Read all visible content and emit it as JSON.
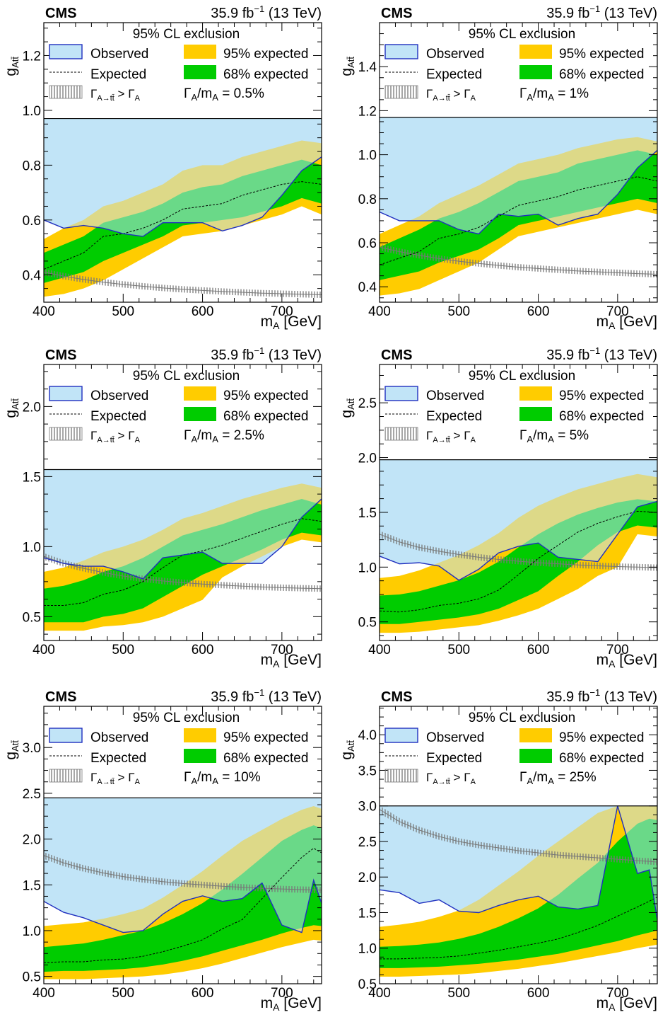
{
  "figure": {
    "experiment": "CMS",
    "lumi": "35.9 fb",
    "lumi_exp": "−1",
    "energy": "(13 TeV)",
    "legend_title": "95% CL exclusion",
    "legend_observed": "Observed",
    "legend_expected": "Expected",
    "legend_95": "95% expected",
    "legend_68": "68% expected",
    "legend_width_text": "> Γ",
    "xlabel": "m",
    "xlabel_sub": "A",
    "xlabel_unit": "[GeV]",
    "ylabel": "g",
    "ylabel_sub": "Att̄",
    "colors": {
      "observed_fill": "#c1e4f7",
      "observed_line": "#1f2fbf",
      "band95": "#ffcc00",
      "band68": "#00cc00",
      "overlap95": "#b8c88a",
      "overlap68": "#3cc87e",
      "width_hatch": "#777777"
    }
  },
  "chart_data": [
    {
      "type": "line",
      "width_label": "Γ",
      "width_sub": "A",
      "width_rest": "/m",
      "width_value": "= 0.5%",
      "xlim": [
        400,
        750
      ],
      "ylim": [
        0.3,
        1.32
      ],
      "yticks": [
        0.4,
        0.6,
        0.8,
        1.0,
        1.2
      ],
      "ytick_labels": [
        "0.4",
        "0.6",
        "0.8",
        "1.0",
        "1.2"
      ],
      "xticks": [
        400,
        500,
        600,
        700
      ],
      "xtick_labels": [
        "400",
        "500",
        "600",
        "700"
      ],
      "legend_frame_y": 0.97,
      "x": [
        400,
        425,
        450,
        475,
        500,
        525,
        550,
        575,
        600,
        625,
        650,
        675,
        700,
        725,
        750
      ],
      "expected": [
        0.42,
        0.45,
        0.48,
        0.54,
        0.55,
        0.57,
        0.6,
        0.64,
        0.65,
        0.66,
        0.69,
        0.71,
        0.73,
        0.74,
        0.73
      ],
      "band68_low": [
        0.37,
        0.39,
        0.41,
        0.45,
        0.48,
        0.51,
        0.54,
        0.58,
        0.59,
        0.6,
        0.61,
        0.63,
        0.65,
        0.68,
        0.66
      ],
      "band68_high": [
        0.48,
        0.51,
        0.54,
        0.59,
        0.61,
        0.63,
        0.66,
        0.7,
        0.72,
        0.73,
        0.76,
        0.78,
        0.8,
        0.82,
        0.8
      ],
      "band95_low": [
        0.32,
        0.33,
        0.35,
        0.38,
        0.42,
        0.46,
        0.5,
        0.54,
        0.55,
        0.56,
        0.58,
        0.6,
        0.62,
        0.65,
        0.62
      ],
      "band95_high": [
        0.53,
        0.57,
        0.6,
        0.65,
        0.67,
        0.7,
        0.73,
        0.78,
        0.8,
        0.8,
        0.83,
        0.85,
        0.87,
        0.89,
        0.88
      ],
      "observed": [
        0.6,
        0.57,
        0.58,
        0.57,
        0.55,
        0.54,
        0.59,
        0.59,
        0.59,
        0.56,
        0.58,
        0.61,
        0.69,
        0.78,
        0.83
      ],
      "width_limit": [
        0.41,
        0.395,
        0.383,
        0.373,
        0.365,
        0.358,
        0.352,
        0.347,
        0.343,
        0.339,
        0.336,
        0.333,
        0.331,
        0.329,
        0.327
      ]
    },
    {
      "type": "line",
      "width_label": "Γ",
      "width_sub": "A",
      "width_rest": "/m",
      "width_value": "= 1%",
      "xlim": [
        400,
        750
      ],
      "ylim": [
        0.33,
        1.6
      ],
      "yticks": [
        0.4,
        0.6,
        0.8,
        1.0,
        1.2,
        1.4
      ],
      "ytick_labels": [
        "0.4",
        "0.6",
        "0.8",
        "1.0",
        "1.2",
        "1.4"
      ],
      "xticks": [
        400,
        500,
        600,
        700
      ],
      "xtick_labels": [
        "400",
        "500",
        "600",
        "700"
      ],
      "legend_frame_y": 1.17,
      "x": [
        400,
        425,
        450,
        475,
        500,
        525,
        550,
        575,
        600,
        625,
        650,
        675,
        700,
        725,
        750
      ],
      "expected": [
        0.5,
        0.53,
        0.56,
        0.62,
        0.64,
        0.67,
        0.72,
        0.77,
        0.79,
        0.81,
        0.84,
        0.86,
        0.88,
        0.9,
        0.88
      ],
      "band68_low": [
        0.43,
        0.45,
        0.47,
        0.51,
        0.54,
        0.57,
        0.62,
        0.68,
        0.7,
        0.72,
        0.74,
        0.76,
        0.78,
        0.8,
        0.78
      ],
      "band68_high": [
        0.58,
        0.62,
        0.66,
        0.71,
        0.74,
        0.78,
        0.83,
        0.88,
        0.9,
        0.92,
        0.96,
        0.98,
        1.0,
        1.02,
        1.0
      ],
      "band95_low": [
        0.36,
        0.37,
        0.39,
        0.43,
        0.47,
        0.51,
        0.57,
        0.63,
        0.65,
        0.67,
        0.69,
        0.71,
        0.73,
        0.75,
        0.73
      ],
      "band95_high": [
        0.64,
        0.68,
        0.72,
        0.78,
        0.82,
        0.86,
        0.91,
        0.96,
        0.98,
        1.0,
        1.03,
        1.05,
        1.07,
        1.08,
        1.06
      ],
      "observed": [
        0.74,
        0.7,
        0.7,
        0.7,
        0.66,
        0.64,
        0.73,
        0.72,
        0.73,
        0.68,
        0.71,
        0.73,
        0.82,
        0.94,
        1.02
      ],
      "width_limit": [
        0.58,
        0.56,
        0.543,
        0.528,
        0.516,
        0.506,
        0.497,
        0.489,
        0.483,
        0.477,
        0.472,
        0.468,
        0.464,
        0.46,
        0.457
      ]
    },
    {
      "type": "line",
      "width_label": "Γ",
      "width_sub": "A",
      "width_rest": "/m",
      "width_value": "= 2.5%",
      "xlim": [
        400,
        750
      ],
      "ylim": [
        0.33,
        2.3
      ],
      "yticks": [
        0.5,
        1.0,
        1.5,
        2.0
      ],
      "ytick_labels": [
        "0.5",
        "1.0",
        "1.5",
        "2.0"
      ],
      "xticks": [
        400,
        500,
        600,
        700
      ],
      "xtick_labels": [
        "400",
        "500",
        "600",
        "700"
      ],
      "legend_frame_y": 1.55,
      "x": [
        400,
        425,
        450,
        475,
        500,
        525,
        550,
        575,
        600,
        625,
        650,
        675,
        700,
        725,
        750
      ],
      "expected": [
        0.58,
        0.58,
        0.6,
        0.66,
        0.69,
        0.75,
        0.85,
        0.94,
        0.97,
        1.01,
        1.06,
        1.11,
        1.16,
        1.2,
        1.18
      ],
      "band68_low": [
        0.46,
        0.46,
        0.46,
        0.5,
        0.52,
        0.56,
        0.64,
        0.72,
        0.8,
        0.86,
        0.92,
        0.98,
        1.05,
        1.1,
        1.08
      ],
      "band68_high": [
        0.7,
        0.72,
        0.76,
        0.82,
        0.86,
        0.92,
        1.0,
        1.08,
        1.12,
        1.16,
        1.21,
        1.26,
        1.3,
        1.34,
        1.3
      ],
      "band95_low": [
        0.4,
        0.4,
        0.4,
        0.43,
        0.44,
        0.46,
        0.5,
        0.56,
        0.62,
        0.78,
        0.86,
        0.93,
        1.0,
        1.05,
        1.03
      ],
      "band95_high": [
        0.82,
        0.85,
        0.9,
        0.96,
        1.0,
        1.05,
        1.12,
        1.2,
        1.24,
        1.29,
        1.34,
        1.38,
        1.42,
        1.45,
        1.42
      ],
      "observed": [
        0.92,
        0.88,
        0.86,
        0.86,
        0.82,
        0.77,
        0.92,
        0.94,
        0.96,
        0.88,
        0.88,
        0.88,
        1.0,
        1.21,
        1.34
      ],
      "width_limit": [
        0.93,
        0.88,
        0.845,
        0.815,
        0.79,
        0.77,
        0.755,
        0.743,
        0.733,
        0.725,
        0.718,
        0.712,
        0.707,
        0.703,
        0.7
      ]
    },
    {
      "type": "line",
      "width_label": "Γ",
      "width_sub": "A",
      "width_rest": "/m",
      "width_value": "= 5%",
      "xlim": [
        400,
        750
      ],
      "ylim": [
        0.33,
        2.85
      ],
      "yticks": [
        0.5,
        1.0,
        1.5,
        2.0,
        2.5
      ],
      "ytick_labels": [
        "0.5",
        "1.0",
        "1.5",
        "2.0",
        "2.5"
      ],
      "xticks": [
        400,
        500,
        600,
        700
      ],
      "xtick_labels": [
        "400",
        "500",
        "600",
        "700"
      ],
      "legend_frame_y": 1.98,
      "x": [
        400,
        425,
        450,
        475,
        500,
        525,
        550,
        575,
        600,
        625,
        650,
        675,
        700,
        725,
        750
      ],
      "expected": [
        0.6,
        0.59,
        0.61,
        0.65,
        0.67,
        0.71,
        0.79,
        0.93,
        1.08,
        1.2,
        1.32,
        1.4,
        1.46,
        1.51,
        1.5
      ],
      "band68_low": [
        0.48,
        0.48,
        0.5,
        0.52,
        0.54,
        0.57,
        0.62,
        0.7,
        0.78,
        0.92,
        1.05,
        1.2,
        1.32,
        1.38,
        1.36
      ],
      "band68_high": [
        0.74,
        0.75,
        0.78,
        0.83,
        0.88,
        0.95,
        1.05,
        1.18,
        1.3,
        1.4,
        1.48,
        1.54,
        1.59,
        1.62,
        1.6
      ],
      "band95_low": [
        0.4,
        0.4,
        0.41,
        0.43,
        0.45,
        0.47,
        0.51,
        0.56,
        0.62,
        0.71,
        0.8,
        0.92,
        1.0,
        1.3,
        1.28
      ],
      "band95_high": [
        0.9,
        0.92,
        0.97,
        1.04,
        1.11,
        1.2,
        1.31,
        1.45,
        1.56,
        1.64,
        1.71,
        1.76,
        1.81,
        1.85,
        1.82
      ],
      "observed": [
        1.1,
        1.03,
        1.04,
        1.01,
        0.88,
        0.98,
        1.13,
        1.19,
        1.22,
        1.09,
        1.07,
        1.05,
        1.3,
        1.55,
        1.6
      ],
      "width_limit": [
        1.3,
        1.23,
        1.18,
        1.145,
        1.115,
        1.09,
        1.07,
        1.054,
        1.04,
        1.03,
        1.02,
        1.012,
        1.005,
        1.0,
        0.995
      ]
    },
    {
      "type": "line",
      "width_label": "Γ",
      "width_sub": "A",
      "width_rest": "/m",
      "width_value": "= 10%",
      "xlim": [
        400,
        750
      ],
      "ylim": [
        0.42,
        3.45
      ],
      "yticks": [
        0.5,
        1.0,
        1.5,
        2.0,
        2.5,
        3.0
      ],
      "ytick_labels": [
        "0.5",
        "1.0",
        "1.5",
        "2.0",
        "2.5",
        "3.0"
      ],
      "xticks": [
        400,
        500,
        600,
        700
      ],
      "xtick_labels": [
        "400",
        "500",
        "600",
        "700"
      ],
      "legend_frame_y": 2.45,
      "x": [
        400,
        425,
        450,
        475,
        500,
        525,
        550,
        575,
        600,
        625,
        650,
        675,
        700,
        725,
        740,
        750
      ],
      "expected": [
        0.65,
        0.66,
        0.66,
        0.68,
        0.69,
        0.72,
        0.77,
        0.83,
        0.9,
        1.02,
        1.12,
        1.35,
        1.58,
        1.8,
        1.9,
        1.85
      ],
      "band68_low": [
        0.55,
        0.56,
        0.56,
        0.57,
        0.58,
        0.6,
        0.63,
        0.67,
        0.72,
        0.78,
        0.84,
        0.9,
        0.97,
        1.03,
        1.06,
        1.05
      ],
      "band68_high": [
        0.82,
        0.84,
        0.86,
        0.9,
        0.95,
        1.0,
        1.08,
        1.18,
        1.3,
        1.45,
        1.62,
        1.8,
        1.98,
        2.1,
        2.15,
        2.12
      ],
      "band95_low": [
        0.47,
        0.47,
        0.47,
        0.48,
        0.49,
        0.5,
        0.52,
        0.55,
        0.59,
        0.64,
        0.7,
        0.76,
        0.82,
        0.87,
        0.9,
        0.89
      ],
      "band95_high": [
        1.05,
        1.07,
        1.09,
        1.13,
        1.18,
        1.24,
        1.36,
        1.5,
        1.65,
        1.82,
        1.98,
        2.1,
        2.22,
        2.32,
        2.36,
        2.33
      ],
      "observed": [
        1.32,
        1.2,
        1.14,
        1.06,
        0.98,
        1.0,
        1.18,
        1.32,
        1.38,
        1.32,
        1.35,
        1.52,
        1.06,
        0.98,
        1.55,
        1.3
      ],
      "width_limit": [
        1.82,
        1.74,
        1.68,
        1.63,
        1.59,
        1.56,
        1.535,
        1.515,
        1.5,
        1.485,
        1.473,
        1.463,
        1.455,
        1.448,
        1.445,
        1.442
      ]
    },
    {
      "type": "line",
      "width_label": "Γ",
      "width_sub": "A",
      "width_rest": "/m",
      "width_value": "= 25%",
      "xlim": [
        400,
        750
      ],
      "ylim": [
        0.5,
        4.4
      ],
      "yticks": [
        0.5,
        1.0,
        1.5,
        2.0,
        2.5,
        3.0,
        3.5,
        4.0
      ],
      "ytick_labels": [
        "0.5",
        "1.0",
        "1.5",
        "2.0",
        "2.5",
        "3.0",
        "3.5",
        "4.0"
      ],
      "xticks": [
        400,
        500,
        600,
        700
      ],
      "xtick_labels": [
        "400",
        "500",
        "600",
        "700"
      ],
      "legend_frame_y": 3.0,
      "x": [
        400,
        425,
        450,
        475,
        500,
        525,
        550,
        575,
        600,
        625,
        650,
        675,
        700,
        725,
        740,
        750
      ],
      "expected": [
        0.85,
        0.85,
        0.86,
        0.87,
        0.89,
        0.93,
        0.97,
        1.02,
        1.07,
        1.13,
        1.22,
        1.32,
        1.45,
        1.58,
        1.66,
        1.72
      ],
      "band68_low": [
        0.72,
        0.72,
        0.73,
        0.74,
        0.76,
        0.78,
        0.81,
        0.84,
        0.88,
        0.92,
        0.98,
        1.04,
        1.1,
        1.18,
        1.22,
        1.25
      ],
      "band68_high": [
        1.02,
        1.03,
        1.05,
        1.08,
        1.13,
        1.2,
        1.3,
        1.42,
        1.56,
        1.75,
        1.98,
        2.2,
        2.5,
        2.75,
        2.82,
        2.8
      ],
      "band95_low": [
        0.6,
        0.6,
        0.61,
        0.62,
        0.63,
        0.65,
        0.68,
        0.71,
        0.75,
        0.79,
        0.84,
        0.89,
        0.94,
        1.0,
        1.03,
        1.05
      ],
      "band95_high": [
        1.3,
        1.33,
        1.37,
        1.44,
        1.53,
        1.68,
        1.88,
        2.08,
        2.3,
        2.5,
        2.7,
        2.9,
        3.0,
        3.0,
        3.0,
        3.0
      ],
      "observed": [
        1.82,
        1.78,
        1.63,
        1.68,
        1.52,
        1.5,
        1.6,
        1.68,
        1.73,
        1.58,
        1.55,
        1.6,
        3.0,
        2.05,
        2.1,
        1.4
      ],
      "width_limit": [
        2.95,
        2.78,
        2.66,
        2.57,
        2.5,
        2.45,
        2.41,
        2.37,
        2.34,
        2.31,
        2.29,
        2.27,
        2.25,
        2.23,
        2.22,
        2.21
      ]
    }
  ]
}
